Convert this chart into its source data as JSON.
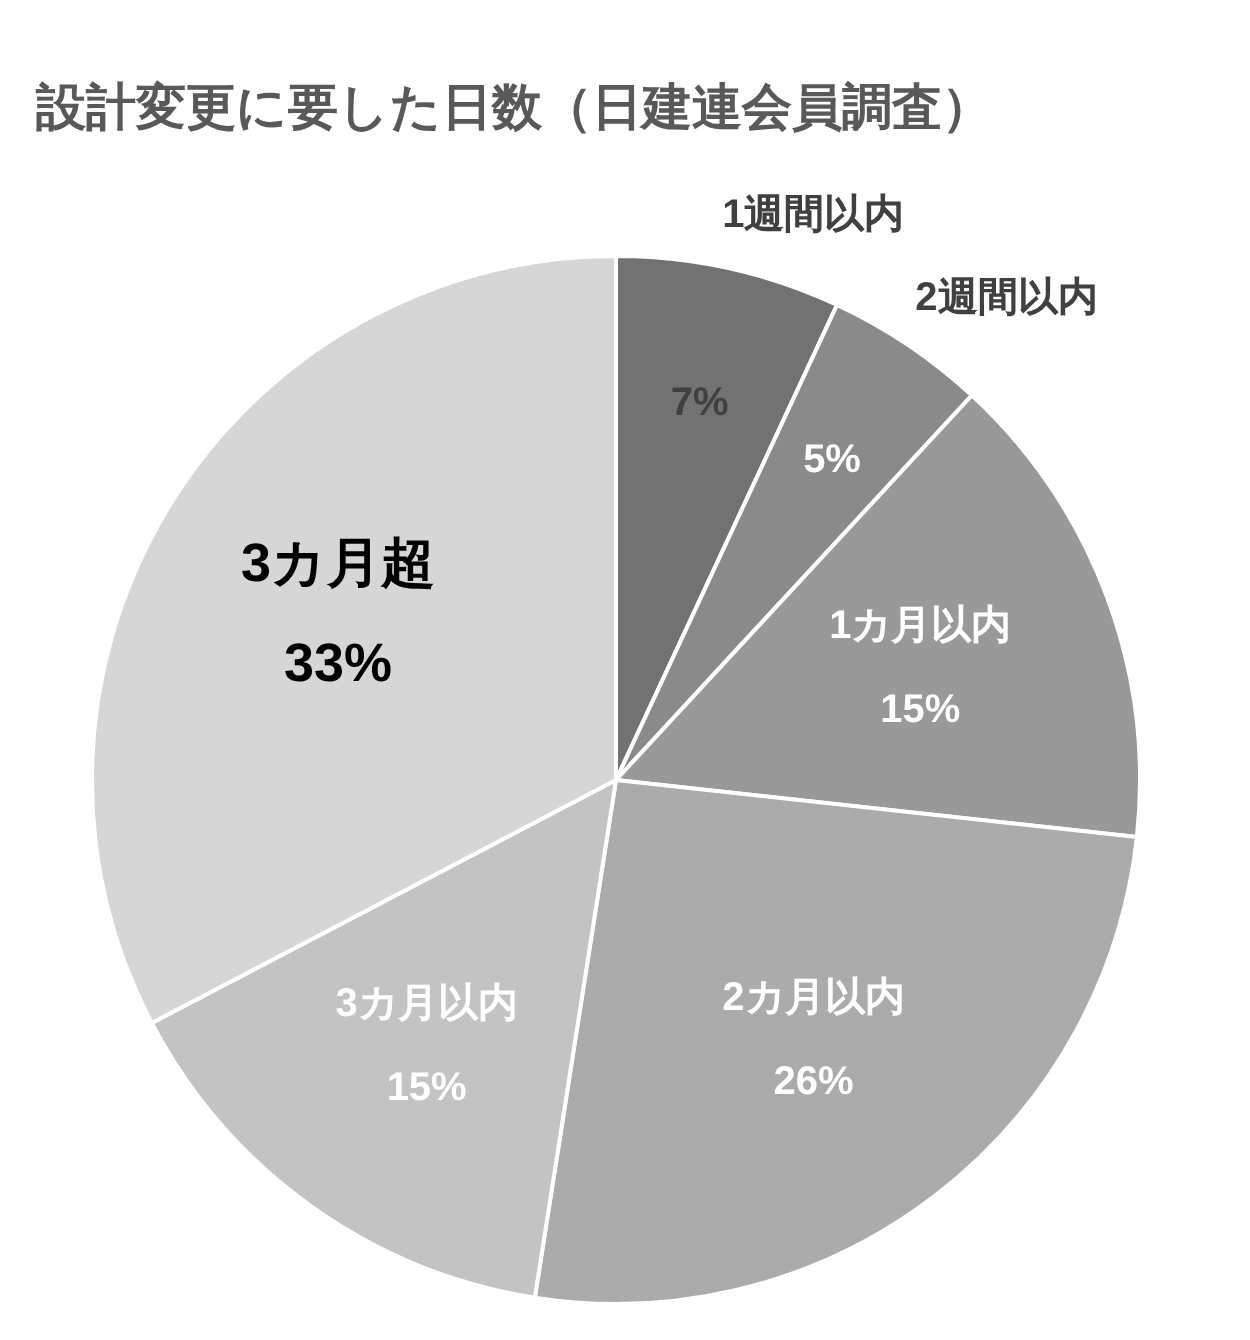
{
  "chart_data": {
    "type": "pie",
    "title": "設計変更に要した日数（日建連会員調査）",
    "categories": [
      "1週間以内",
      "2週間以内",
      "1カ月以内",
      "2カ月以内",
      "3カ月以内",
      "3カ月超"
    ],
    "values": [
      7,
      5,
      15,
      26,
      15,
      33
    ],
    "value_labels": [
      "7%",
      "5%",
      "15%",
      "26%",
      "15%",
      "33%"
    ],
    "colors": [
      "#727272",
      "#8a8a8a",
      "#999999",
      "#ababab",
      "#c3c3c3",
      "#d6d6d6"
    ]
  }
}
